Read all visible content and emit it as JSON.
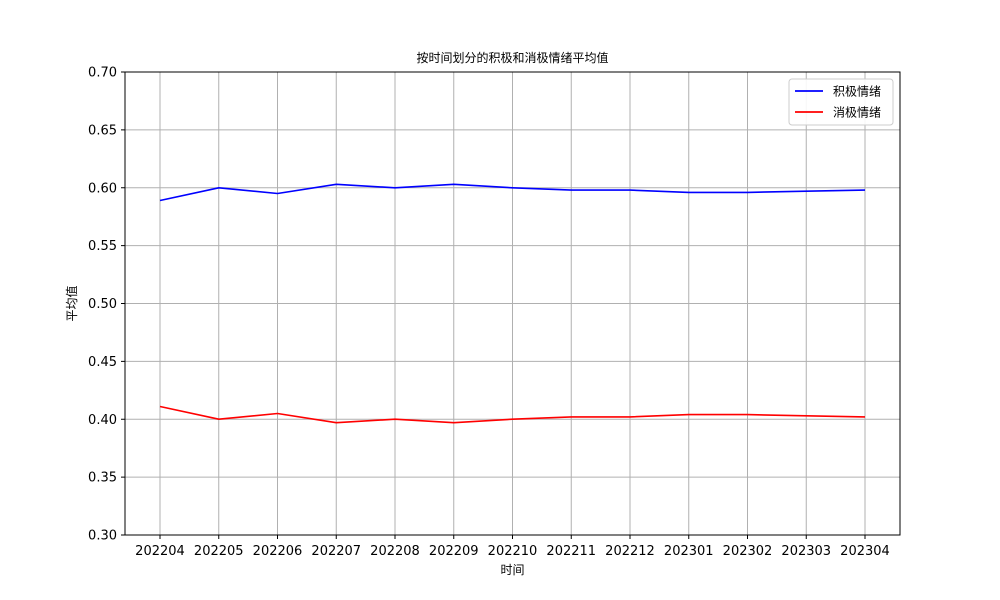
{
  "chart_data": {
    "type": "line",
    "title": "按时间划分的积极和消极情绪平均值",
    "xlabel": "时间",
    "ylabel": "平均值",
    "categories": [
      "202204",
      "202205",
      "202206",
      "202207",
      "202208",
      "202209",
      "202210",
      "202211",
      "202212",
      "202301",
      "202302",
      "202303",
      "202304"
    ],
    "ylim": [
      0.3,
      0.7
    ],
    "yticks": [
      "0.30",
      "0.35",
      "0.40",
      "0.45",
      "0.50",
      "0.55",
      "0.60",
      "0.65",
      "0.70"
    ],
    "grid": true,
    "legend_position": "top-right",
    "series": [
      {
        "name": "积极情绪",
        "color": "#0000ff",
        "values": [
          0.589,
          0.6,
          0.595,
          0.603,
          0.6,
          0.603,
          0.6,
          0.598,
          0.598,
          0.596,
          0.596,
          0.597,
          0.598
        ]
      },
      {
        "name": "消极情绪",
        "color": "#ff0000",
        "values": [
          0.411,
          0.4,
          0.405,
          0.397,
          0.4,
          0.397,
          0.4,
          0.402,
          0.402,
          0.404,
          0.404,
          0.403,
          0.402
        ]
      }
    ]
  }
}
